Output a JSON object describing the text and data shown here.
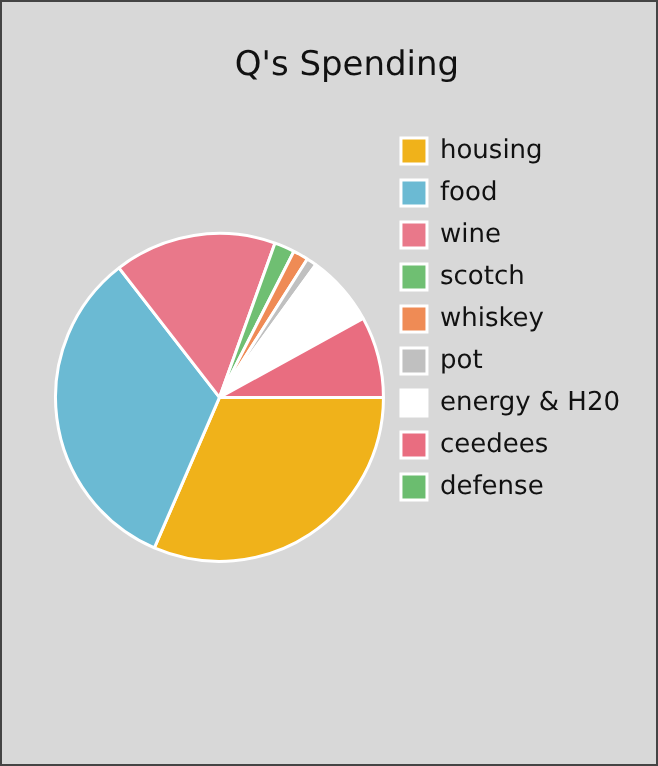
{
  "chart_data": {
    "type": "pie",
    "title": "Q's Spending",
    "categories": [
      "housing",
      "food",
      "wine",
      "scotch",
      "whiskey",
      "pot",
      "energy & H20",
      "ceedees",
      "defense"
    ],
    "values": [
      31.5,
      33,
      16,
      2,
      1.5,
      1,
      7,
      8,
      0
    ],
    "colors": [
      "#f0b21a",
      "#6bbad3",
      "#e9788a",
      "#6fbf72",
      "#ef8b55",
      "#c0c0c0",
      "#ffffff",
      "#e96d80",
      "#6bbd6f"
    ],
    "legend": "right"
  }
}
